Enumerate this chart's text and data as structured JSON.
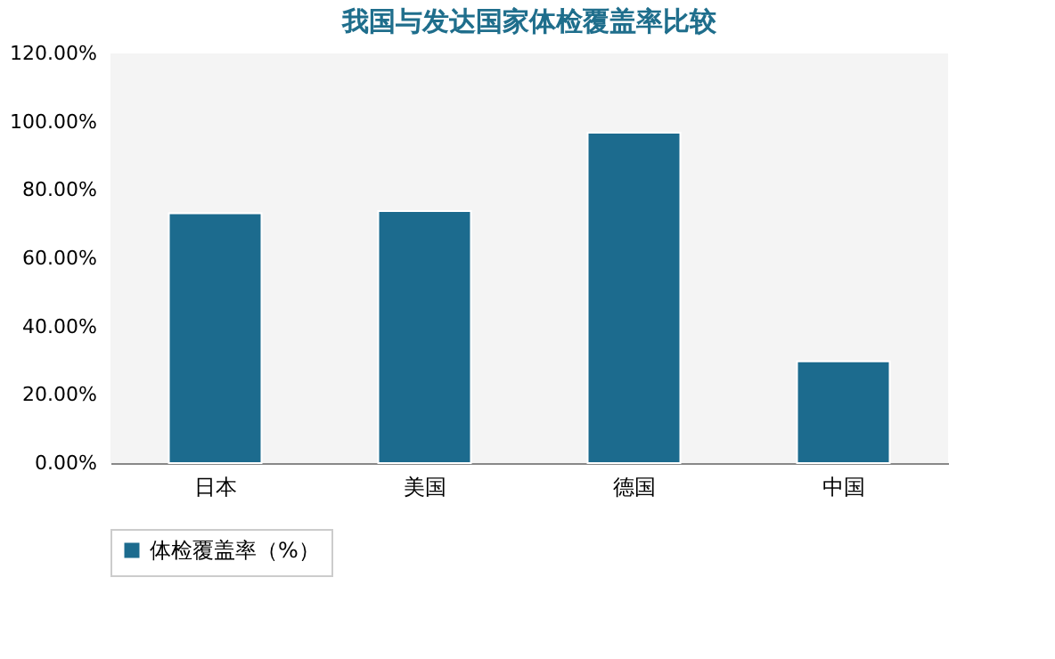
{
  "chart_data": {
    "type": "bar",
    "title": "我国与发达国家体检覆盖率比较",
    "categories": [
      "日本",
      "美国",
      "德国",
      "中国"
    ],
    "series": [
      {
        "name": "体检覆盖率（%）",
        "color": "#1c6b8e",
        "values": [
          73.2,
          73.8,
          96.8,
          29.8
        ]
      }
    ],
    "ylim": [
      0,
      120
    ],
    "yticks": [
      {
        "value": 0,
        "label": "0.00%"
      },
      {
        "value": 20,
        "label": "20.00%"
      },
      {
        "value": 40,
        "label": "40.00%"
      },
      {
        "value": 60,
        "label": "60.00%"
      },
      {
        "value": 80,
        "label": "80.00%"
      },
      {
        "value": 100,
        "label": "100.00%"
      },
      {
        "value": 120,
        "label": "120.00%"
      }
    ],
    "grid": false,
    "legend": "bottom"
  }
}
